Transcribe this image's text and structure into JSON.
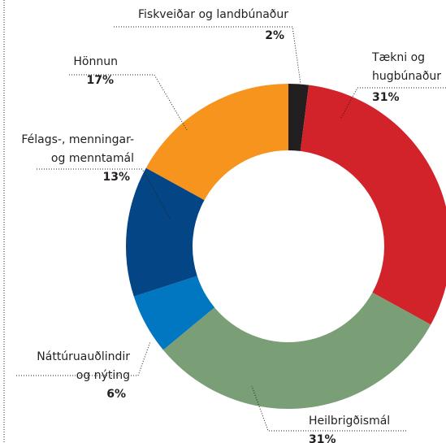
{
  "chart_data": {
    "type": "donut",
    "labels": [
      [
        "Fiskveiðar og landbúnaður"
      ],
      [
        "Tækni og",
        "hugbúnaður"
      ],
      [
        "Heilbrigðismál"
      ],
      [
        "Náttúruauðlindir",
        "og nýting"
      ],
      [
        "Félags-, menningar-",
        "og menntamál"
      ],
      [
        "Hönnun"
      ]
    ],
    "values": [
      2,
      31,
      31,
      6,
      13,
      17
    ],
    "value_labels": [
      "2%",
      "31%",
      "31%",
      "6%",
      "13%",
      "17%"
    ],
    "colors": [
      "#231f20",
      "#d2232a",
      "#7a9e75",
      "#0077c0",
      "#034585",
      "#f7941d"
    ]
  }
}
